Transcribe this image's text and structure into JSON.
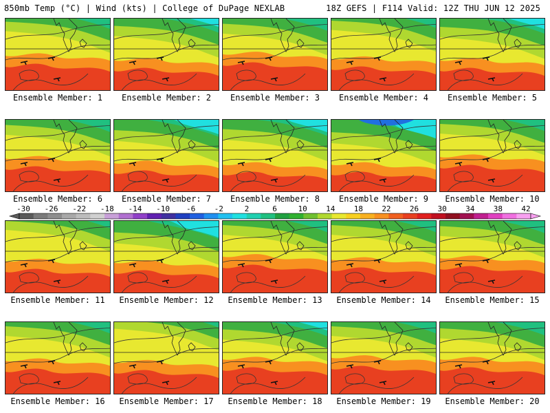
{
  "header": {
    "left": "850mb Temp (°C) | Wind (kts) | College of DuPage NEXLAB",
    "right": "18Z GEFS | F114 Valid: 12Z THU JUN 12 2025"
  },
  "panels": [
    {
      "label": "Ensemble Member: 1",
      "warmth": 0.8,
      "cold": 0.35
    },
    {
      "label": "Ensemble Member: 2",
      "warmth": 0.65,
      "cold": 0.55
    },
    {
      "label": "Ensemble Member: 3",
      "warmth": 0.85,
      "cold": 0.45
    },
    {
      "label": "Ensemble Member: 4",
      "warmth": 0.7,
      "cold": 0.3
    },
    {
      "label": "Ensemble Member: 5",
      "warmth": 0.65,
      "cold": 0.6
    },
    {
      "label": "Ensemble Member: 6",
      "warmth": 0.75,
      "cold": 0.45
    },
    {
      "label": "Ensemble Member: 7",
      "warmth": 0.6,
      "cold": 0.7
    },
    {
      "label": "Ensemble Member: 8",
      "warmth": 0.55,
      "cold": 0.65
    },
    {
      "label": "Ensemble Member: 9",
      "warmth": 0.55,
      "cold": 0.8
    },
    {
      "label": "Ensemble Member: 10",
      "warmth": 0.8,
      "cold": 0.4
    },
    {
      "label": "Ensemble Member: 11",
      "warmth": 0.7,
      "cold": 0.2
    },
    {
      "label": "Ensemble Member: 12",
      "warmth": 0.65,
      "cold": 0.75
    },
    {
      "label": "Ensemble Member: 13",
      "warmth": 0.85,
      "cold": 0.4
    },
    {
      "label": "Ensemble Member: 14",
      "warmth": 0.75,
      "cold": 0.4
    },
    {
      "label": "Ensemble Member: 15",
      "warmth": 0.8,
      "cold": 0.45
    },
    {
      "label": "Ensemble Member: 16",
      "warmth": 0.75,
      "cold": 0.4
    },
    {
      "label": "Ensemble Member: 17",
      "warmth": 0.7,
      "cold": 0.1
    },
    {
      "label": "Ensemble Member: 18",
      "warmth": 0.8,
      "cold": 0.55
    },
    {
      "label": "Ensemble Member: 19",
      "warmth": 0.85,
      "cold": 0.4
    },
    {
      "label": "Ensemble Member: 20",
      "warmth": 0.8,
      "cold": 0.5
    }
  ],
  "colorbar": {
    "tick_labels": [
      "-30",
      "-26",
      "-22",
      "-18",
      "-14",
      "-10",
      "-6",
      "-2",
      "2",
      "6",
      "10",
      "14",
      "18",
      "22",
      "26",
      "30",
      "34",
      "38",
      "42"
    ],
    "colors": [
      "#5a5a5a",
      "#7a7a7a",
      "#8e8e8e",
      "#a8a8a8",
      "#bcbcbc",
      "#d0d0d0",
      "#c8a0d8",
      "#b070d0",
      "#9040c8",
      "#6020b0",
      "#4030a0",
      "#2040c0",
      "#2060e0",
      "#2090f0",
      "#20c0f0",
      "#20e0e0",
      "#20d0b0",
      "#20c080",
      "#20a040",
      "#30b030",
      "#70c030",
      "#b0d830",
      "#e8e830",
      "#f8d020",
      "#f8b020",
      "#f89020",
      "#f06020",
      "#e84020",
      "#e02020",
      "#c01020",
      "#901020",
      "#a01050",
      "#c02090",
      "#e040c0",
      "#f070e0",
      "#f8a0f0"
    ],
    "units": "°C"
  },
  "palette": {
    "hot": "#e84020",
    "orange": "#f89020",
    "yellow": "#e8e830",
    "lime": "#b0d830",
    "green": "#40b040",
    "teal": "#20c080",
    "cyan": "#20e0e0",
    "blue": "#2070e0"
  }
}
